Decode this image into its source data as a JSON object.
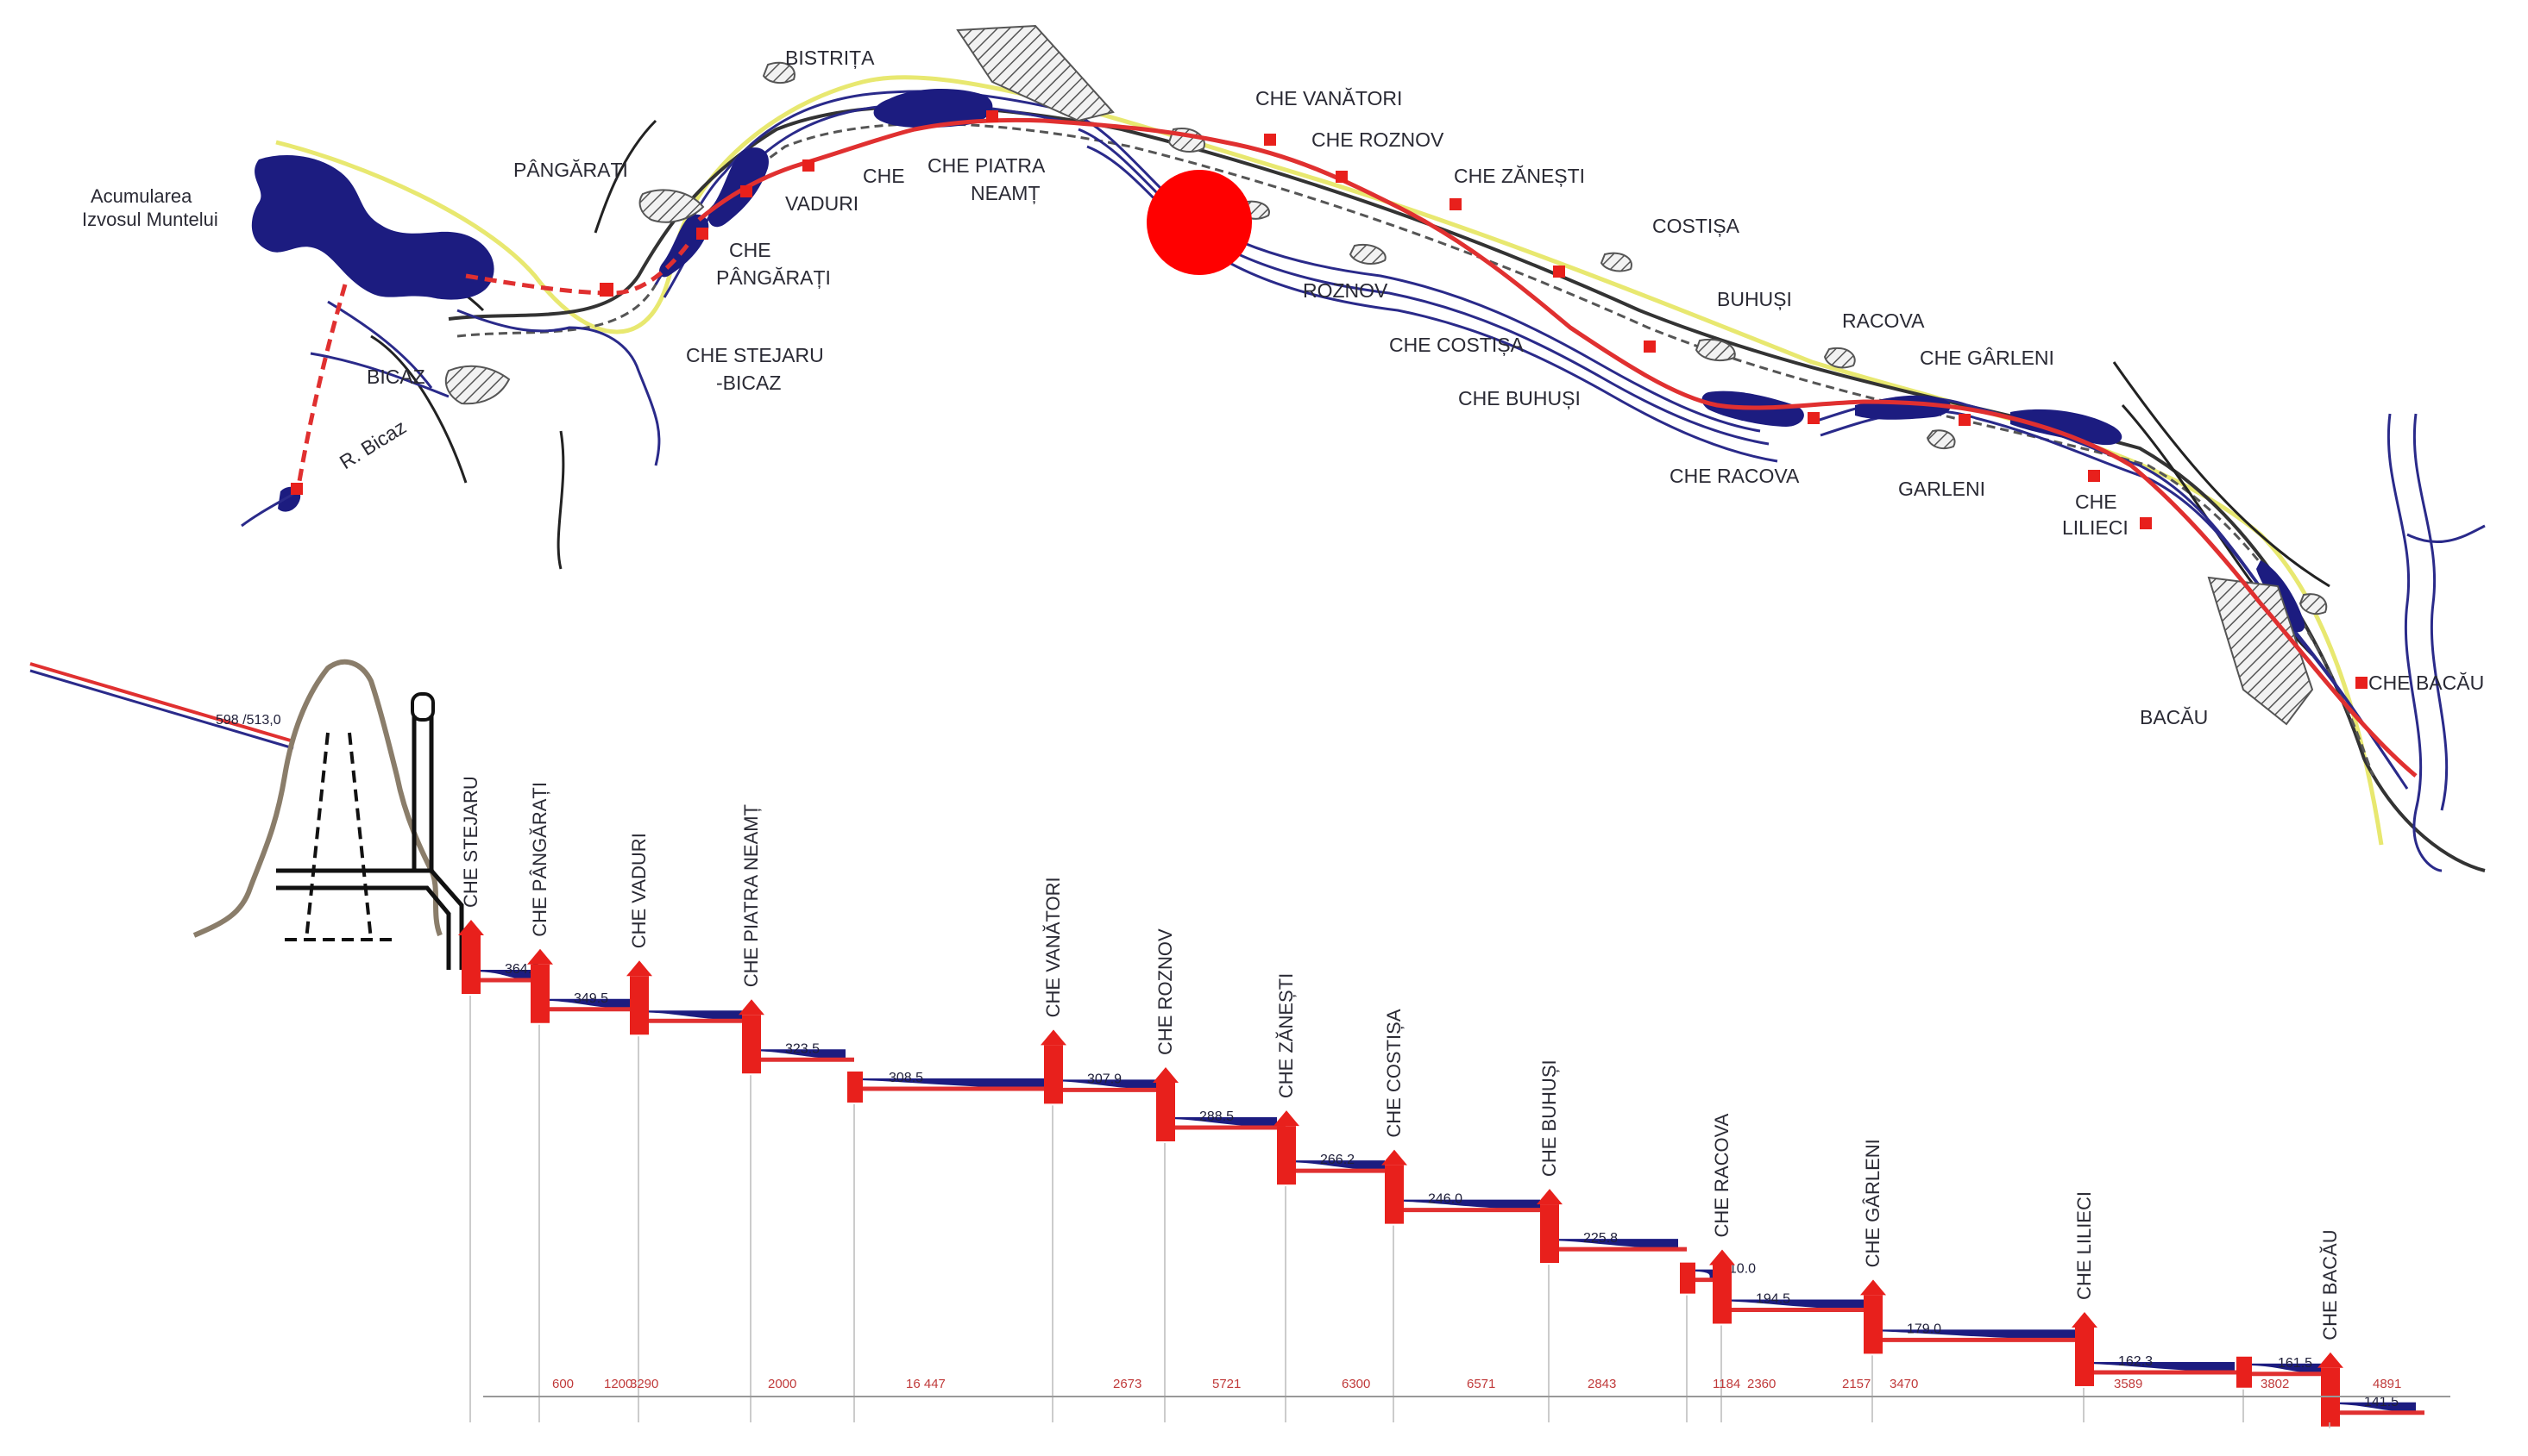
{
  "map": {
    "labels": {
      "acumularea": [
        "Acumularea",
        "Izvosul Muntelui"
      ],
      "bistrita": "BISTRIȚA",
      "pangarati_town": "PÂNGĂRAȚI",
      "bicaz": "BICAZ",
      "r_bicaz": "R. Bicaz",
      "che_stejaru": [
        "CHE STEJARU",
        "-BICAZ"
      ],
      "che_pangarati": [
        "CHE",
        "PÂNGĂRAȚI"
      ],
      "che_vaduri": [
        "CHE",
        "VADURI"
      ],
      "che_piatra": [
        "CHE PIATRA",
        "NEAMȚ"
      ],
      "che_vanatori": "CHE VANĂTORI",
      "che_roznov": "CHE ROZNOV",
      "che_zanesti": "CHE ZĂNEȘTI",
      "costisa": "COSTIȘA",
      "roznov": "ROZNOV",
      "che_costisa": "CHE COSTIȘA",
      "buhusi": "BUHUȘI",
      "racova": "RACOVA",
      "che_buhusi": "CHE BUHUȘI",
      "che_racova": "CHE RACOVA",
      "garleni": "GARLENI",
      "che_garleni": "CHE  GÂRLENI",
      "che_lilieci": [
        "CHE",
        "LILIECI"
      ],
      "bacau": "BACĂU",
      "che_bacau": "CHE BACĂU"
    }
  },
  "profile": {
    "intake_level": "598 /513,0",
    "plants": [
      {
        "name": "CHE STEJARU",
        "elev": "364.5"
      },
      {
        "name": "CHE PÂNGĂRAȚI",
        "elev": "349.5"
      },
      {
        "name": "CHE VADURI",
        "elev": ""
      },
      {
        "name": "CHE PIATRA NEAMȚ",
        "elev": "323.5"
      },
      {
        "name": "",
        "elev": "308.5"
      },
      {
        "name": "CHE VANĂTORI",
        "elev": "307.9"
      },
      {
        "name": "CHE ROZNOV",
        "elev": "288.5"
      },
      {
        "name": "CHE ZĂNEȘTI",
        "elev": "266.2"
      },
      {
        "name": "CHE COSTIȘA",
        "elev": "246.0"
      },
      {
        "name": "CHE BUHUȘI",
        "elev": "225.8"
      },
      {
        "name": "",
        "elev": "210.0"
      },
      {
        "name": "CHE RACOVA",
        "elev": "194.5"
      },
      {
        "name": "CHE GÂRLENI",
        "elev": "179.0"
      },
      {
        "name": "CHE LILIECI",
        "elev": "162.3"
      },
      {
        "name": "",
        "elev": "161.5"
      },
      {
        "name": "CHE BACĂU",
        "elev": "141.5"
      }
    ],
    "distances": [
      "600",
      "1200",
      "3290",
      "2000",
      "16 447",
      "2673",
      "5721",
      "6300",
      "6571",
      "2843",
      "1184",
      "2360",
      "2157",
      "3470",
      "3589",
      "3802",
      "4891"
    ]
  },
  "colors": {
    "water": "#1c1c80",
    "dam": "#e8201c",
    "canal": "#e03030",
    "road": "#e8e870",
    "marker": "#ff0000"
  }
}
